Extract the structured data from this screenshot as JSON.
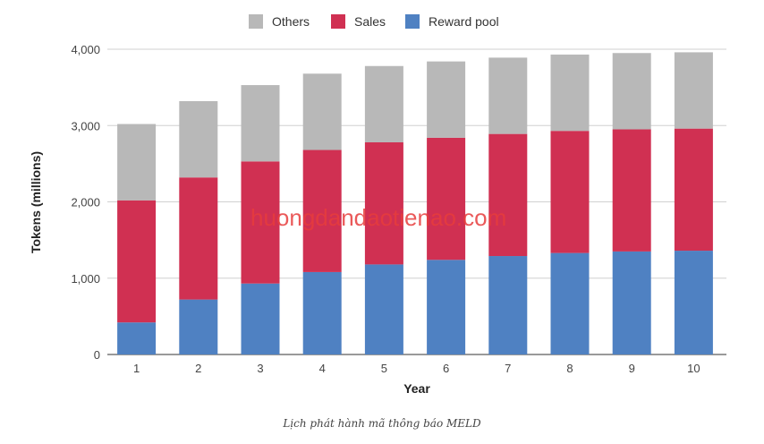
{
  "chart_data": {
    "type": "bar",
    "stacked": true,
    "xlabel": "Year",
    "ylabel": "Tokens (millions)",
    "ylim": [
      0,
      4000
    ],
    "yticks": [
      0,
      1000,
      2000,
      3000,
      4000
    ],
    "ytick_labels": [
      "0",
      "1,000",
      "2,000",
      "3,000",
      "4,000"
    ],
    "grid": true,
    "legend_position": "top-center",
    "categories": [
      "1",
      "2",
      "3",
      "4",
      "5",
      "6",
      "7",
      "8",
      "9",
      "10"
    ],
    "series": [
      {
        "name": "Reward pool",
        "color": "#4f81c2",
        "values": [
          420,
          720,
          930,
          1080,
          1180,
          1240,
          1290,
          1330,
          1350,
          1360
        ]
      },
      {
        "name": "Sales",
        "color": "#d03052",
        "values": [
          1600,
          1600,
          1600,
          1600,
          1600,
          1600,
          1600,
          1600,
          1600,
          1600
        ]
      },
      {
        "name": "Others",
        "color": "#b8b8b8",
        "values": [
          1000,
          1000,
          1000,
          1000,
          1000,
          1000,
          1000,
          1000,
          1000,
          1000
        ]
      }
    ],
    "legend_order": [
      "Others",
      "Sales",
      "Reward pool"
    ]
  },
  "watermark": "huongdandaotienao.com",
  "caption": "Lịch phát hành mã thông báo MELD"
}
